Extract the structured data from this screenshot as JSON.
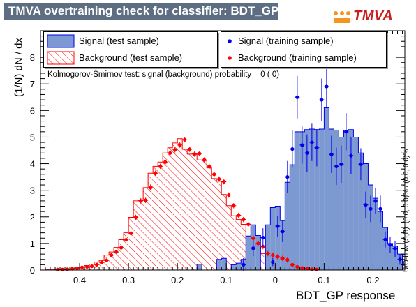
{
  "title": "TMVA overtraining check for classifier: BDT_GP",
  "logo": {
    "text": "TMVA"
  },
  "overflow_note": "U/O-flow (S,B): (0.0, 0.0)% / (0.0, 0.0)%",
  "colors": {
    "signal_fill": "#7d99d1",
    "signal_line": "#0000ee",
    "background_hatch": "#ff0000",
    "signal_point": "#0000ee",
    "background_point": "#ff0000",
    "title_bg": "#5e6e82"
  },
  "chart_data": {
    "type": "bar",
    "xlabel": "BDT_GP response",
    "ylabel": "(1/N) dN / dx",
    "xlim": [
      -0.48,
      0.265
    ],
    "ylim": [
      0,
      9.0
    ],
    "xticks": [
      -0.4,
      -0.3,
      -0.2,
      -0.1,
      0,
      0.1,
      0.2
    ],
    "xtick_labels": [
      "0.4",
      "0.3",
      "0.2",
      "0.1",
      "0",
      "0.1",
      "0.2"
    ],
    "yticks": [
      0,
      1,
      2,
      3,
      4,
      5,
      6,
      7,
      8
    ],
    "ytick_labels": [
      "0",
      "1",
      "2",
      "3",
      "4",
      "5",
      "6",
      "7",
      "8"
    ],
    "bin_width": 0.01,
    "annotation": "Kolmogorov-Smirnov test: signal (background) probability =     0 (    0)",
    "legend": [
      "Signal (test sample)",
      "Background (test sample)",
      "Signal (training sample)",
      "Background (training sample)"
    ],
    "series": [
      {
        "name": "Signal (test sample)",
        "kind": "filled-histogram",
        "bins": [
          [
            -0.16,
            -0.15,
            0.22
          ],
          [
            -0.13,
            -0.12,
            0.0
          ],
          [
            -0.12,
            -0.11,
            0.4
          ],
          [
            -0.11,
            -0.1,
            0.44
          ],
          [
            -0.1,
            -0.09,
            0.0
          ],
          [
            -0.09,
            -0.08,
            0.2
          ],
          [
            -0.08,
            -0.07,
            0.26
          ],
          [
            -0.07,
            -0.06,
            0.4
          ],
          [
            -0.06,
            -0.05,
            1.28
          ],
          [
            -0.05,
            -0.04,
            1.7
          ],
          [
            -0.04,
            -0.03,
            1.3
          ],
          [
            -0.03,
            -0.02,
            0.0
          ],
          [
            -0.02,
            -0.01,
            1.7
          ],
          [
            -0.01,
            0.0,
            2.35
          ],
          [
            0.0,
            0.01,
            2.4
          ],
          [
            0.01,
            0.02,
            1.86
          ],
          [
            0.02,
            0.03,
            3.3
          ],
          [
            0.03,
            0.04,
            3.96
          ],
          [
            0.04,
            0.05,
            5.2
          ],
          [
            0.05,
            0.06,
            5.2
          ],
          [
            0.06,
            0.07,
            5.28
          ],
          [
            0.07,
            0.08,
            5.3
          ],
          [
            0.08,
            0.09,
            5.28
          ],
          [
            0.09,
            0.1,
            5.3
          ],
          [
            0.1,
            0.11,
            6.1
          ],
          [
            0.11,
            0.12,
            5.3
          ],
          [
            0.12,
            0.13,
            5.26
          ],
          [
            0.13,
            0.14,
            5.0
          ],
          [
            0.14,
            0.15,
            5.25
          ],
          [
            0.15,
            0.16,
            5.28
          ],
          [
            0.16,
            0.17,
            5.0
          ],
          [
            0.17,
            0.18,
            4.4
          ],
          [
            0.18,
            0.19,
            4.0
          ],
          [
            0.19,
            0.2,
            3.2
          ],
          [
            0.2,
            0.21,
            2.7
          ],
          [
            0.21,
            0.22,
            2.2
          ],
          [
            0.22,
            0.23,
            1.6
          ],
          [
            0.23,
            0.24,
            1.0
          ],
          [
            0.24,
            0.25,
            0.9
          ],
          [
            0.25,
            0.26,
            0.6
          ]
        ]
      },
      {
        "name": "Background (test sample)",
        "kind": "hatched-histogram",
        "bins": [
          [
            -0.47,
            -0.46,
            0.01
          ],
          [
            -0.46,
            -0.45,
            0.01
          ],
          [
            -0.45,
            -0.44,
            0.02
          ],
          [
            -0.44,
            -0.43,
            0.02
          ],
          [
            -0.43,
            -0.42,
            0.03
          ],
          [
            -0.42,
            -0.41,
            0.06
          ],
          [
            -0.41,
            -0.4,
            0.1
          ],
          [
            -0.4,
            -0.39,
            0.12
          ],
          [
            -0.39,
            -0.38,
            0.17
          ],
          [
            -0.38,
            -0.37,
            0.22
          ],
          [
            -0.37,
            -0.36,
            0.3
          ],
          [
            -0.36,
            -0.35,
            0.36
          ],
          [
            -0.35,
            -0.34,
            0.56
          ],
          [
            -0.34,
            -0.33,
            0.68
          ],
          [
            -0.33,
            -0.32,
            0.85
          ],
          [
            -0.32,
            -0.31,
            1.14
          ],
          [
            -0.31,
            -0.3,
            1.4
          ],
          [
            -0.3,
            -0.29,
            1.98
          ],
          [
            -0.29,
            -0.28,
            2.6
          ],
          [
            -0.28,
            -0.27,
            2.62
          ],
          [
            -0.27,
            -0.26,
            3.1
          ],
          [
            -0.26,
            -0.25,
            3.64
          ],
          [
            -0.25,
            -0.24,
            3.9
          ],
          [
            -0.24,
            -0.23,
            4.06
          ],
          [
            -0.23,
            -0.22,
            4.4
          ],
          [
            -0.22,
            -0.21,
            4.6
          ],
          [
            -0.21,
            -0.2,
            4.78
          ],
          [
            -0.2,
            -0.19,
            4.94
          ],
          [
            -0.19,
            -0.18,
            4.54
          ],
          [
            -0.18,
            -0.17,
            4.36
          ],
          [
            -0.17,
            -0.16,
            4.38
          ],
          [
            -0.16,
            -0.15,
            4.14
          ],
          [
            -0.15,
            -0.14,
            4.12
          ],
          [
            -0.14,
            -0.13,
            3.84
          ],
          [
            -0.13,
            -0.12,
            3.44
          ],
          [
            -0.12,
            -0.11,
            3.34
          ],
          [
            -0.11,
            -0.1,
            2.84
          ],
          [
            -0.1,
            -0.09,
            2.42
          ],
          [
            -0.09,
            -0.08,
            2.04
          ],
          [
            -0.08,
            -0.07,
            1.9
          ],
          [
            -0.07,
            -0.06,
            1.72
          ],
          [
            -0.06,
            -0.05,
            1.2
          ],
          [
            -0.05,
            -0.04,
            1.0
          ],
          [
            -0.04,
            -0.03,
            0.88
          ],
          [
            -0.03,
            -0.02,
            0.62
          ],
          [
            -0.02,
            -0.01,
            0.56
          ],
          [
            -0.01,
            0.0,
            0.5
          ],
          [
            0.0,
            0.01,
            0.46
          ],
          [
            0.01,
            0.02,
            0.4
          ],
          [
            0.02,
            0.03,
            0.2
          ],
          [
            0.03,
            0.04,
            0.12
          ],
          [
            0.04,
            0.05,
            0.08
          ],
          [
            0.05,
            0.06,
            0.06
          ],
          [
            0.06,
            0.07,
            0.03
          ],
          [
            0.07,
            0.08,
            0.02
          ],
          [
            0.08,
            0.09,
            0.01
          ]
        ]
      },
      {
        "name": "Signal (training sample)",
        "kind": "points-with-errors",
        "points": [
          [
            -0.065,
            0.2,
            0.25
          ],
          [
            -0.045,
            0.82,
            0.3
          ],
          [
            -0.025,
            1.22,
            0.35
          ],
          [
            -0.005,
            0.3,
            0.15
          ],
          [
            0.005,
            1.65,
            0.4
          ],
          [
            0.015,
            1.45,
            0.4
          ],
          [
            0.025,
            3.5,
            0.6
          ],
          [
            0.035,
            4.55,
            0.7
          ],
          [
            0.045,
            6.5,
            0.8
          ],
          [
            0.055,
            4.7,
            0.7
          ],
          [
            0.065,
            4.4,
            0.7
          ],
          [
            0.075,
            4.8,
            0.7
          ],
          [
            0.085,
            4.6,
            0.7
          ],
          [
            0.095,
            6.4,
            0.8
          ],
          [
            0.105,
            6.9,
            0.8
          ],
          [
            0.115,
            4.35,
            0.7
          ],
          [
            0.125,
            3.9,
            0.7
          ],
          [
            0.135,
            3.98,
            0.7
          ],
          [
            0.145,
            5.2,
            0.7
          ],
          [
            0.155,
            4.3,
            0.7
          ],
          [
            0.175,
            3.98,
            0.6
          ],
          [
            0.185,
            2.45,
            0.5
          ],
          [
            0.195,
            2.3,
            0.5
          ],
          [
            0.205,
            2.6,
            0.5
          ],
          [
            0.215,
            2.3,
            0.5
          ],
          [
            0.225,
            1.15,
            0.3
          ],
          [
            0.235,
            0.95,
            0.3
          ],
          [
            0.245,
            0.8,
            0.3
          ],
          [
            0.255,
            0.4,
            0.2
          ]
        ]
      },
      {
        "name": "Background (training sample)",
        "kind": "points-with-errors",
        "points": [
          [
            -0.445,
            0.02,
            0
          ],
          [
            -0.435,
            0.02,
            0
          ],
          [
            -0.425,
            0.03,
            0
          ],
          [
            -0.415,
            0.05,
            0
          ],
          [
            -0.405,
            0.07,
            0
          ],
          [
            -0.395,
            0.1,
            0
          ],
          [
            -0.385,
            0.12,
            0
          ],
          [
            -0.375,
            0.14,
            0
          ],
          [
            -0.365,
            0.2,
            0
          ],
          [
            -0.355,
            0.28,
            0
          ],
          [
            -0.345,
            0.36,
            0
          ],
          [
            -0.335,
            0.56,
            0
          ],
          [
            -0.325,
            0.68,
            0
          ],
          [
            -0.315,
            0.84,
            0
          ],
          [
            -0.305,
            1.14,
            0
          ],
          [
            -0.295,
            1.38,
            0.1
          ],
          [
            -0.285,
            1.98,
            0.1
          ],
          [
            -0.275,
            2.6,
            0.1
          ],
          [
            -0.265,
            2.62,
            0.1
          ],
          [
            -0.255,
            3.1,
            0.1
          ],
          [
            -0.245,
            3.64,
            0.1
          ],
          [
            -0.235,
            3.9,
            0.1
          ],
          [
            -0.225,
            4.06,
            0.1
          ],
          [
            -0.215,
            4.4,
            0.1
          ],
          [
            -0.205,
            4.52,
            0.1
          ],
          [
            -0.195,
            4.7,
            0.1
          ],
          [
            -0.185,
            4.9,
            0.1
          ],
          [
            -0.175,
            4.54,
            0.1
          ],
          [
            -0.165,
            4.36,
            0.1
          ],
          [
            -0.155,
            4.38,
            0.1
          ],
          [
            -0.145,
            4.14,
            0.1
          ],
          [
            -0.135,
            3.9,
            0.1
          ],
          [
            -0.125,
            3.6,
            0.1
          ],
          [
            -0.115,
            3.42,
            0.1
          ],
          [
            -0.105,
            3.32,
            0.1
          ],
          [
            -0.095,
            2.82,
            0.1
          ],
          [
            -0.085,
            2.42,
            0.1
          ],
          [
            -0.075,
            2.06,
            0.1
          ],
          [
            -0.065,
            1.9,
            0.1
          ],
          [
            -0.055,
            1.72,
            0.1
          ],
          [
            -0.045,
            1.2,
            0.1
          ],
          [
            -0.035,
            1.0,
            0.1
          ],
          [
            -0.025,
            0.88,
            0.1
          ],
          [
            -0.015,
            0.62,
            0.1
          ],
          [
            -0.005,
            0.56,
            0.1
          ],
          [
            0.005,
            0.5,
            0.1
          ],
          [
            0.015,
            0.44,
            0.1
          ],
          [
            0.025,
            0.38,
            0.1
          ],
          [
            0.035,
            0.2,
            0
          ],
          [
            0.045,
            0.12,
            0
          ],
          [
            0.055,
            0.08,
            0
          ],
          [
            0.065,
            0.06,
            0
          ],
          [
            0.075,
            0.03,
            0
          ],
          [
            0.085,
            0.02,
            0
          ]
        ]
      }
    ]
  }
}
